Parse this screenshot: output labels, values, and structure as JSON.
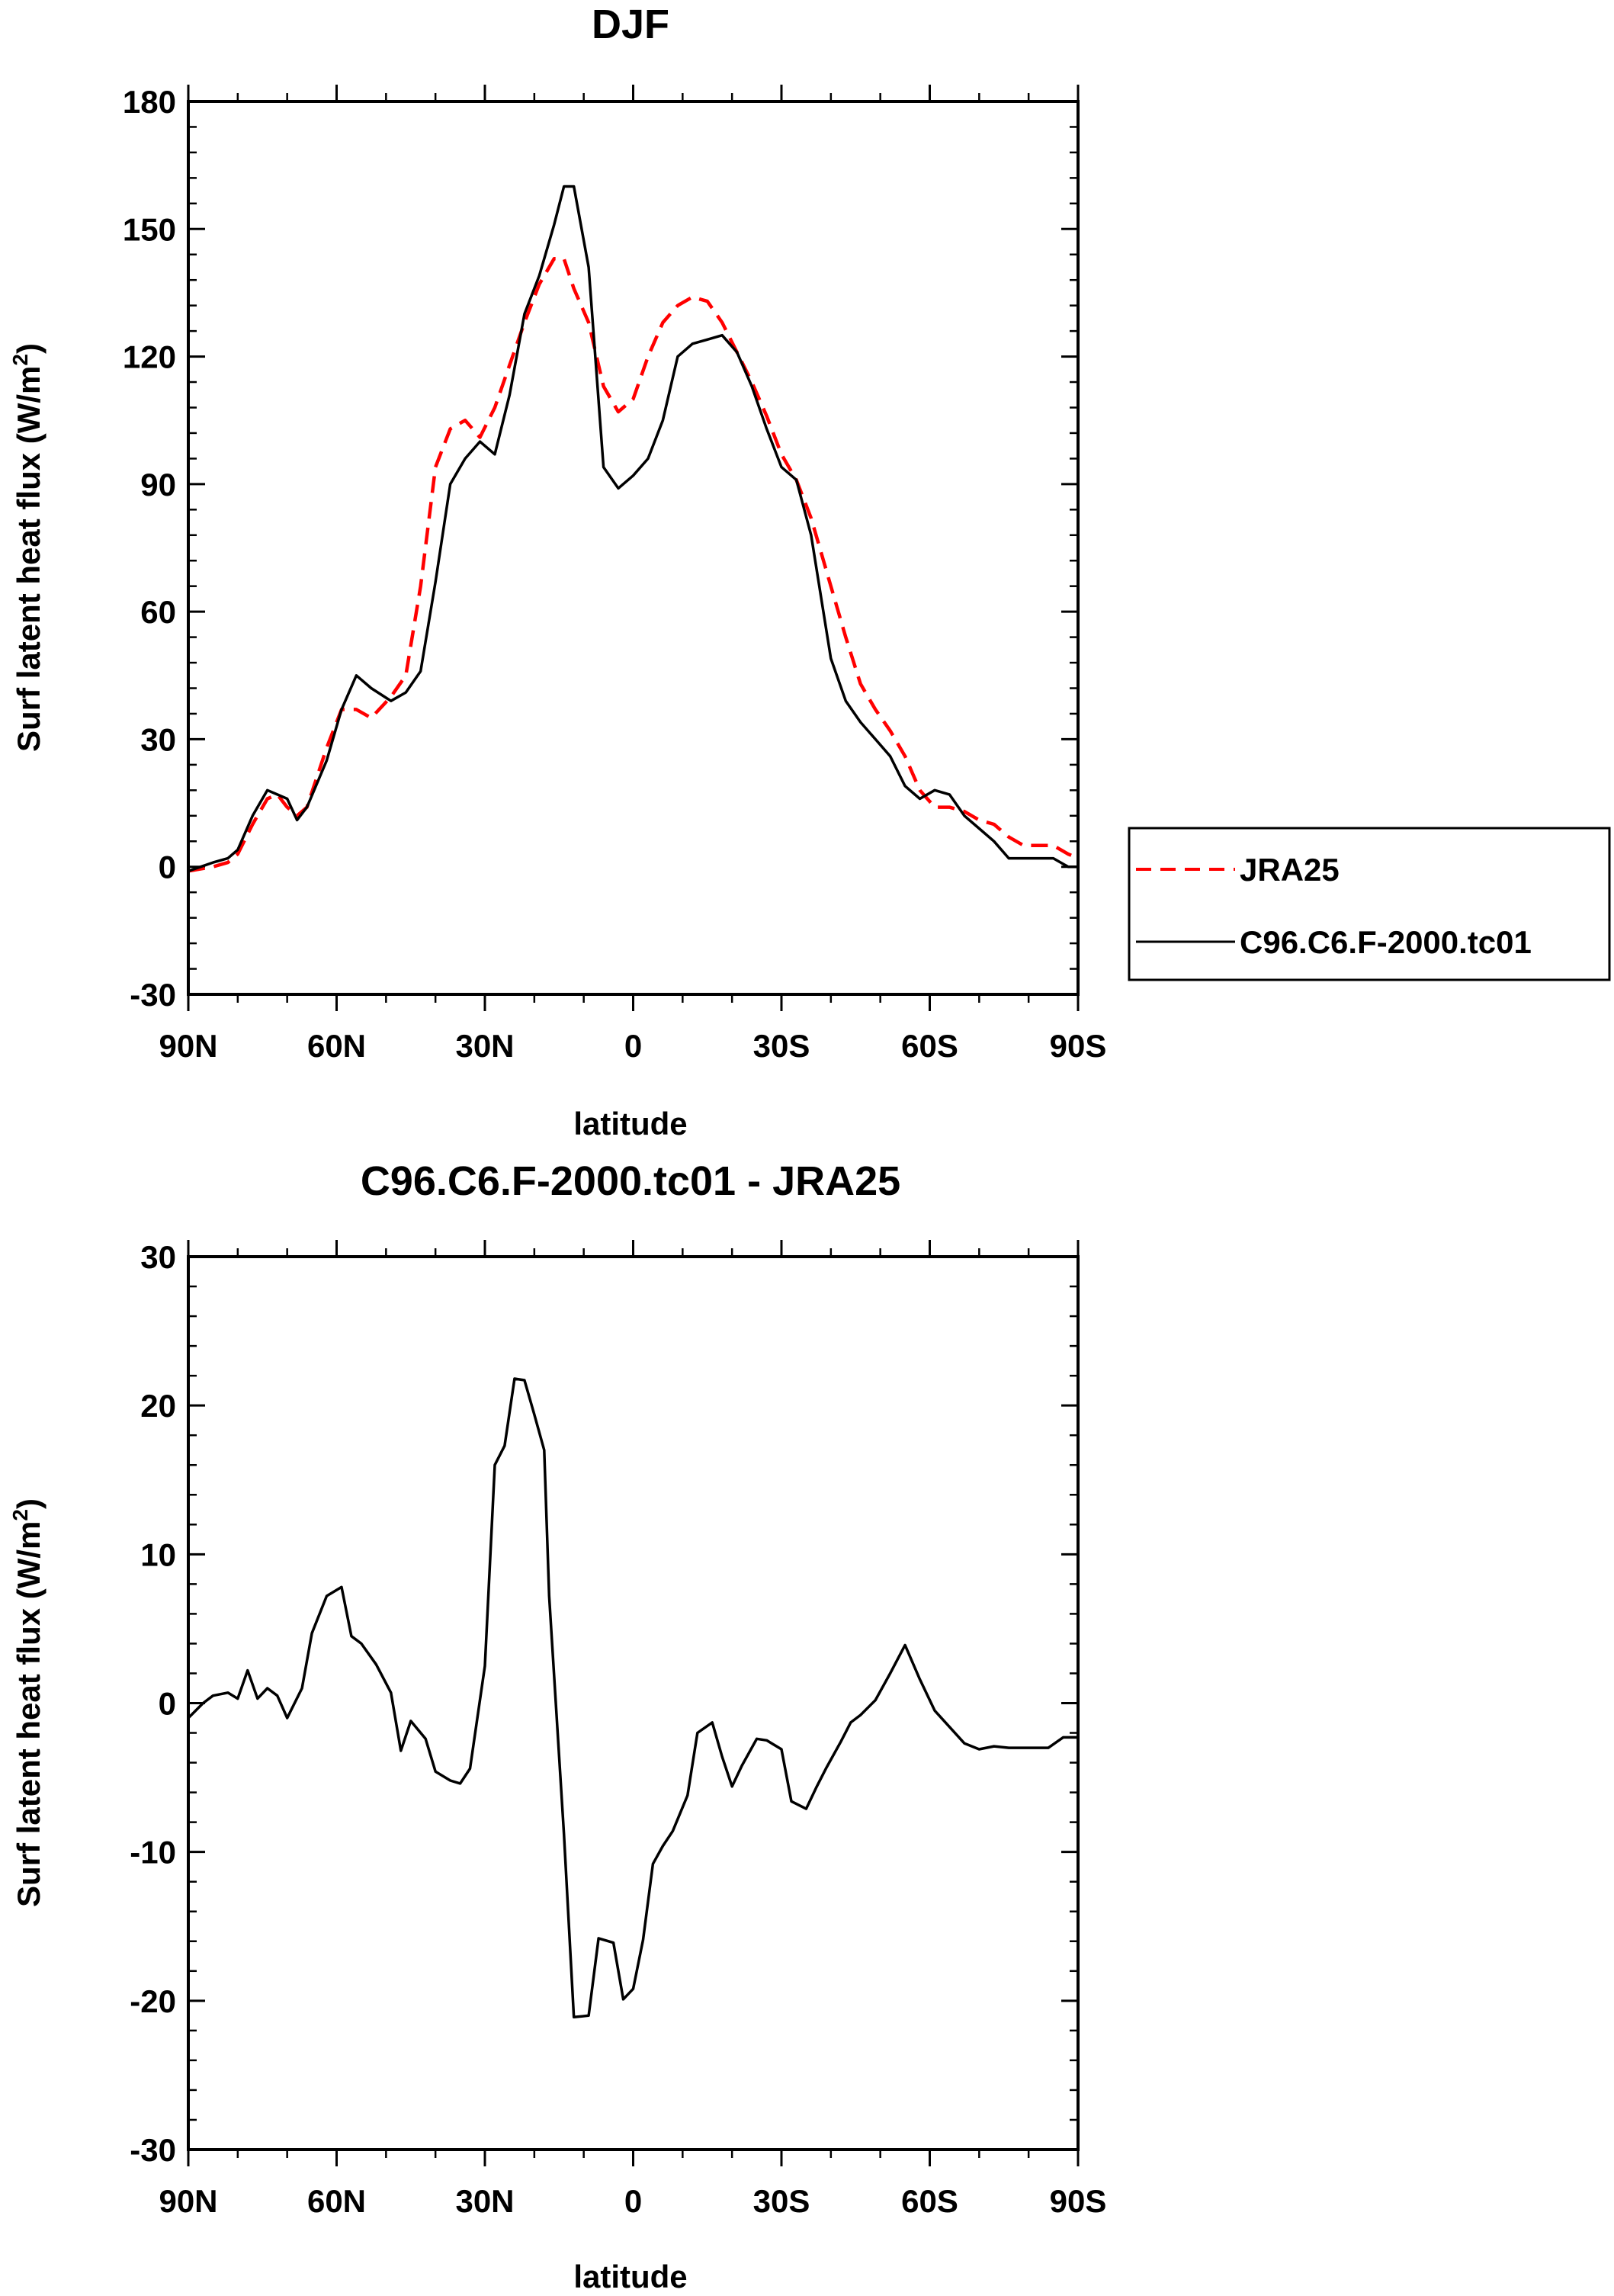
{
  "chart_data": [
    {
      "type": "line",
      "title": "DJF",
      "xlabel": "latitude",
      "ylabel": "Surf latent heat flux (W/m",
      "ylabel_sup": "2",
      "ylabel_close": ")",
      "xlim": [
        90,
        -90
      ],
      "ylim": [
        -30,
        180
      ],
      "yticks": [
        -30,
        0,
        30,
        60,
        90,
        120,
        150,
        180
      ],
      "xticks": [
        90,
        60,
        30,
        0,
        -30,
        -60,
        -90
      ],
      "xtick_labels": [
        "90N",
        "60N",
        "30N",
        "0",
        "30S",
        "60S",
        "90S"
      ],
      "legend": [
        "JRA25",
        "C96.C6.F-2000.tc01"
      ],
      "series": [
        {
          "name": "JRA25",
          "color": "#ff0000",
          "dash": "dashed",
          "x": [
            90,
            85,
            82,
            80,
            77,
            74,
            72,
            70,
            68,
            66,
            62,
            59,
            56,
            53,
            49,
            46,
            43,
            40,
            37,
            34,
            31,
            28,
            25,
            22,
            19,
            16,
            14,
            12,
            9,
            6,
            3,
            0,
            -3,
            -6,
            -9,
            -12,
            -15,
            -18,
            -21,
            -24,
            -27,
            -30,
            -33,
            -36,
            -40,
            -43,
            -46,
            -49,
            -52,
            -55,
            -58,
            -61,
            -64,
            -67,
            -70,
            -73,
            -76,
            -79,
            -82,
            -85,
            -88,
            -90
          ],
          "y": [
            -1,
            0,
            1,
            3,
            10,
            16,
            17,
            14,
            12,
            14,
            28,
            37,
            37,
            35,
            40,
            45,
            66,
            94,
            103,
            105,
            101,
            108,
            118,
            128,
            137,
            143,
            143,
            136,
            128,
            113,
            107,
            110,
            120,
            128,
            132,
            134,
            133,
            128,
            121,
            114,
            106,
            97,
            91,
            82,
            66,
            54,
            43,
            37,
            32,
            26,
            18,
            14,
            14,
            13,
            11,
            10,
            7,
            5,
            5,
            5,
            3,
            2
          ]
        },
        {
          "name": "C96.C6.F-2000.tc01",
          "color": "#000000",
          "dash": "solid",
          "x": [
            90,
            85,
            82,
            80,
            77,
            74,
            72,
            70,
            68,
            66,
            62,
            59,
            56,
            53,
            49,
            46,
            43,
            40,
            37,
            34,
            31,
            28,
            25,
            22,
            19,
            16,
            14,
            12,
            9,
            6,
            3,
            0,
            -3,
            -6,
            -9,
            -12,
            -15,
            -18,
            -21,
            -24,
            -27,
            -30,
            -33,
            -36,
            -40,
            -43,
            -46,
            -49,
            -52,
            -55,
            -58,
            -61,
            -64,
            -67,
            -70,
            -73,
            -76,
            -79,
            -82,
            -85,
            -88,
            -90
          ],
          "y": [
            -1,
            1,
            2,
            4,
            12,
            18,
            17,
            16,
            11,
            14,
            25,
            37,
            45,
            42,
            39,
            41,
            46,
            67,
            90,
            96,
            100,
            97,
            111,
            130,
            139,
            151,
            160,
            160,
            141,
            94,
            89,
            92,
            96,
            105,
            120,
            123,
            124,
            125,
            121,
            113,
            103,
            94,
            91,
            78,
            49,
            39,
            34,
            30,
            26,
            19,
            16,
            18,
            17,
            12,
            9,
            6,
            2,
            2,
            2,
            2,
            0,
            0
          ]
        }
      ]
    },
    {
      "type": "line",
      "title": "C96.C6.F-2000.tc01 - JRA25",
      "xlabel": "latitude",
      "ylabel": "Surf latent heat flux (W/m",
      "ylabel_sup": "2",
      "ylabel_close": ")",
      "xlim": [
        90,
        -90
      ],
      "ylim": [
        -30,
        30
      ],
      "yticks": [
        -30,
        -20,
        -10,
        0,
        10,
        20,
        30
      ],
      "xticks": [
        90,
        60,
        30,
        0,
        -30,
        -60,
        -90
      ],
      "xtick_labels": [
        "90N",
        "60N",
        "30N",
        "0",
        "30S",
        "60S",
        "90S"
      ],
      "series": [
        {
          "name": "C96.C6.F-2000.tc01 - JRA25",
          "color": "#000000",
          "dash": "solid",
          "x": [
            90,
            87,
            85,
            82,
            80,
            78,
            76,
            74,
            72,
            70,
            67,
            65,
            62,
            59,
            57,
            55,
            52,
            49,
            47,
            45,
            42,
            40,
            37,
            35,
            33,
            30,
            28,
            26,
            24,
            22,
            20,
            18,
            17,
            14,
            12,
            9,
            7,
            4,
            2,
            0,
            -2,
            -4,
            -6,
            -8,
            -11,
            -13,
            -16,
            -18,
            -20,
            -22,
            -25,
            -27,
            -30,
            -32,
            -35,
            -37,
            -39,
            -42,
            -44,
            -46,
            -49,
            -52,
            -55,
            -58,
            -61,
            -64,
            -67,
            -70,
            -73,
            -76,
            -78,
            -81,
            -84,
            -87,
            -90
          ],
          "y": [
            -1,
            0,
            0.5,
            0.7,
            0.3,
            2.2,
            0.3,
            1,
            0.5,
            -1,
            1,
            4.7,
            7.2,
            7.8,
            4.5,
            4,
            2.6,
            0.7,
            -3.2,
            -1.2,
            -2.4,
            -4.6,
            -5.2,
            -5.4,
            -4.4,
            2.5,
            16,
            17.3,
            21.8,
            21.7,
            19.4,
            17,
            7.2,
            -8.8,
            -21.1,
            -21,
            -15.8,
            -16.1,
            -19.9,
            -19.2,
            -15.9,
            -10.8,
            -9.6,
            -8.6,
            -6.2,
            -2,
            -1.3,
            -3.6,
            -5.6,
            -4.2,
            -2.4,
            -2.5,
            -3.1,
            -6.6,
            -7.1,
            -5.7,
            -4.4,
            -2.6,
            -1.3,
            -0.8,
            0.2,
            2,
            3.9,
            1.6,
            -0.5,
            -1.6,
            -2.7,
            -3.1,
            -2.9,
            -3,
            -3,
            -3,
            -3,
            -2.3,
            -2.3
          ]
        }
      ]
    }
  ]
}
